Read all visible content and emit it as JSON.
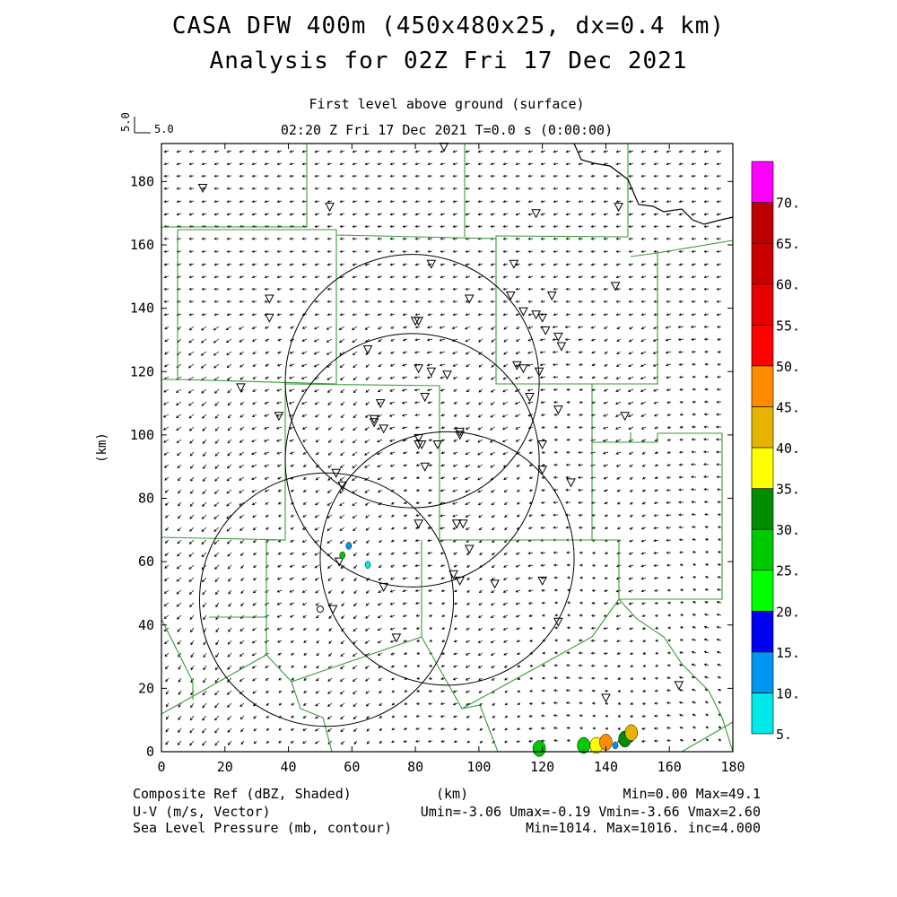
{
  "header": {
    "title_line1": "CASA DFW 400m (450x480x25, dx=0.4 km)",
    "title_line2": "Analysis for 02Z Fri 17 Dec 2021",
    "subtitle1": "First level above ground (surface)",
    "subtitle2": "02:20 Z Fri 17 Dec 2021    T=0.0 s (0:00:00)"
  },
  "vector_key": {
    "label": "5.0",
    "label_rot": "5.0"
  },
  "footer": {
    "ref_label": "Composite Ref (dBZ, Shaded)",
    "ref_stats": "Min=0.00 Max=49.1",
    "uv_label": "U-V (m/s, Vector)",
    "uv_stats": "Umin=-3.06 Umax=-0.19 Vmin=-3.66 Vmax=2.60",
    "slp_label": "Sea Level Pressure (mb, contour)",
    "slp_stats": "Min=1014. Max=1016. inc=4.000",
    "x_unit": "(km)"
  },
  "chart_data": {
    "type": "heatmap",
    "title": "CASA DFW 400m (450x480x25, dx=0.4 km)",
    "xlabel": "(km)",
    "ylabel": "(km)",
    "xlim": [
      0,
      180
    ],
    "ylim": [
      0,
      192
    ],
    "x_ticks": [
      0,
      20,
      40,
      60,
      80,
      100,
      120,
      140,
      160,
      180
    ],
    "y_ticks": [
      0,
      20,
      40,
      60,
      80,
      100,
      120,
      140,
      160,
      180
    ],
    "grid": false,
    "colorbar": {
      "labels": [
        "5.",
        "10.",
        "15.",
        "20.",
        "25.",
        "30.",
        "35.",
        "40.",
        "45.",
        "50.",
        "55.",
        "60.",
        "65.",
        "70."
      ],
      "bins": [
        {
          "from": 5,
          "color": "#00e8e8"
        },
        {
          "from": 10,
          "color": "#0096f0"
        },
        {
          "from": 15,
          "color": "#0000f0"
        },
        {
          "from": 20,
          "color": "#00ff00"
        },
        {
          "from": 25,
          "color": "#00c800"
        },
        {
          "from": 30,
          "color": "#008c00"
        },
        {
          "from": 35,
          "color": "#ffff00"
        },
        {
          "from": 40,
          "color": "#e6b400"
        },
        {
          "from": 45,
          "color": "#ff8c00"
        },
        {
          "from": 50,
          "color": "#ff0000"
        },
        {
          "from": 55,
          "color": "#e60000"
        },
        {
          "from": 60,
          "color": "#c80000"
        },
        {
          "from": 65,
          "color": "#bc0000"
        },
        {
          "from": 70,
          "color": "#ff00ff"
        }
      ]
    },
    "radar_rings": [
      {
        "cx": 79,
        "cy": 117,
        "r": 40
      },
      {
        "cx": 79,
        "cy": 92,
        "r": 40
      },
      {
        "cx": 90,
        "cy": 61,
        "r": 40
      },
      {
        "cx": 52,
        "cy": 48,
        "r": 40
      }
    ],
    "stations": [
      [
        13,
        178
      ],
      [
        53,
        172
      ],
      [
        89,
        191
      ],
      [
        118,
        170
      ],
      [
        144,
        172
      ],
      [
        85,
        154
      ],
      [
        111,
        154
      ],
      [
        143,
        147
      ],
      [
        34,
        143
      ],
      [
        34,
        137
      ],
      [
        97,
        143
      ],
      [
        110,
        144
      ],
      [
        123,
        144
      ],
      [
        80,
        136
      ],
      [
        81,
        136
      ],
      [
        114,
        139
      ],
      [
        118,
        138
      ],
      [
        120,
        137
      ],
      [
        121,
        133
      ],
      [
        125,
        131
      ],
      [
        126,
        128
      ],
      [
        65,
        127
      ],
      [
        81,
        121
      ],
      [
        85,
        120
      ],
      [
        90,
        119
      ],
      [
        112,
        122
      ],
      [
        114,
        121
      ],
      [
        119,
        120
      ],
      [
        25,
        115
      ],
      [
        37,
        106
      ],
      [
        69,
        110
      ],
      [
        83,
        112
      ],
      [
        116,
        112
      ],
      [
        125,
        108
      ],
      [
        146,
        106
      ],
      [
        67,
        105
      ],
      [
        67,
        104
      ],
      [
        70,
        102
      ],
      [
        81,
        99
      ],
      [
        81,
        97
      ],
      [
        82,
        97
      ],
      [
        87,
        97
      ],
      [
        94,
        101
      ],
      [
        94,
        100
      ],
      [
        120,
        97
      ],
      [
        83,
        90
      ],
      [
        120,
        89
      ],
      [
        55,
        88
      ],
      [
        57,
        84
      ],
      [
        129,
        85
      ],
      [
        81,
        72
      ],
      [
        93,
        72
      ],
      [
        95,
        72
      ],
      [
        97,
        64
      ],
      [
        92,
        56
      ],
      [
        94,
        54
      ],
      [
        105,
        53
      ],
      [
        120,
        54
      ],
      [
        56,
        60
      ],
      [
        70,
        52
      ],
      [
        54,
        45
      ],
      [
        125,
        41
      ],
      [
        74,
        36
      ],
      [
        140,
        17
      ],
      [
        163,
        21
      ]
    ],
    "echoes": [
      {
        "x": 59,
        "y": 65,
        "dbz": 10
      },
      {
        "x": 57,
        "y": 62,
        "dbz": 27
      },
      {
        "x": 65,
        "y": 59,
        "dbz": 7
      },
      {
        "x": 119,
        "y": 1,
        "dbz": 28
      },
      {
        "x": 133,
        "y": 2,
        "dbz": 27
      },
      {
        "x": 137,
        "y": 2,
        "dbz": 38
      },
      {
        "x": 140,
        "y": 3,
        "dbz": 46
      },
      {
        "x": 146,
        "y": 4,
        "dbz": 32
      },
      {
        "x": 148,
        "y": 6,
        "dbz": 41
      },
      {
        "x": 143,
        "y": 2,
        "dbz": 12
      }
    ],
    "pressure_contour_marker": {
      "x": 50,
      "y": 45
    }
  }
}
